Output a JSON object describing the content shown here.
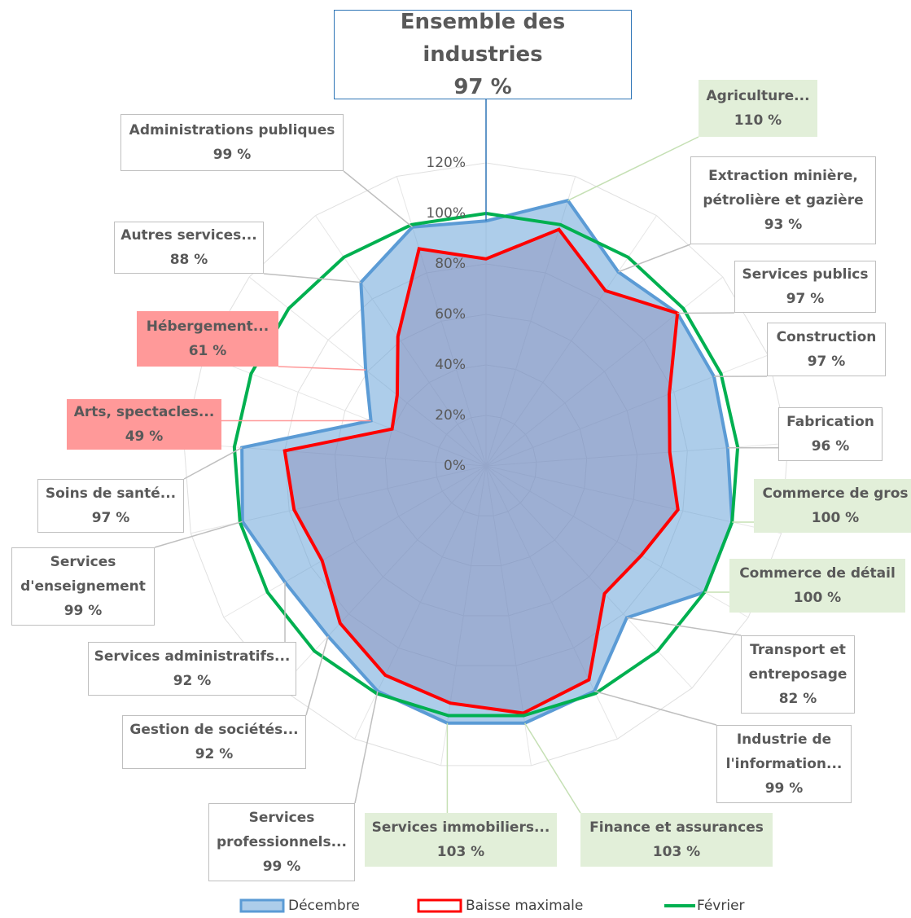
{
  "chart_data": {
    "type": "radar",
    "categories": [
      "Ensemble des industries",
      "Agriculture...",
      "Extraction minière, pétrolière et gazière",
      "Services publics",
      "Construction",
      "Fabrication",
      "Commerce de gros",
      "Commerce de détail",
      "Transport et entreposage",
      "Industrie de l'information...",
      "Finance et assurances",
      "Services immobiliers...",
      "Services professionnels...",
      "Gestion de sociétés...",
      "Services administratifs...",
      "Services d'enseignement",
      "Soins de santé...",
      "Arts, spectacles...",
      "Hébergement...",
      "Autres services...",
      "Administrations publiques"
    ],
    "series": [
      {
        "name": "Décembre",
        "color": "#5b9bd5",
        "values": [
          97,
          110,
          93,
          97,
          97,
          96,
          100,
          100,
          82,
          99,
          103,
          103,
          99,
          92,
          92,
          99,
          97,
          49,
          61,
          88,
          99
        ],
        "value_labels": [
          "97 %",
          "110 %",
          "93 %",
          "97 %",
          "97 %",
          "96 %",
          "100 %",
          "100 %",
          "82 %",
          "99 %",
          "103 %",
          "103 %",
          "99 %",
          "92 %",
          "92 %",
          "99 %",
          "97 %",
          "49 %",
          "61 %",
          "88 %",
          "99 %"
        ]
      },
      {
        "name": "Baisse maximale",
        "color": "#ff0000",
        "values": [
          82,
          98,
          84,
          97,
          78,
          73,
          78,
          71,
          69,
          94,
          99,
          95,
          92,
          85,
          75,
          78,
          80,
          40,
          45,
          62,
          90
        ]
      },
      {
        "name": "Février",
        "color": "#00b050",
        "values": [
          100,
          100,
          100,
          100,
          100,
          100,
          100,
          100,
          100,
          100,
          100,
          100,
          100,
          100,
          100,
          100,
          100,
          100,
          100,
          100,
          100
        ]
      }
    ],
    "ylim": [
      0,
      120
    ],
    "yticks": [
      {
        "value": 0,
        "label": "0%"
      },
      {
        "value": 20,
        "label": "20%"
      },
      {
        "value": 40,
        "label": "40%"
      },
      {
        "value": 60,
        "label": "60%"
      },
      {
        "value": 80,
        "label": "80%"
      },
      {
        "value": 100,
        "label": "100%"
      },
      {
        "value": 120,
        "label": "120%"
      }
    ],
    "grid": true,
    "legend": "bottom"
  }
}
